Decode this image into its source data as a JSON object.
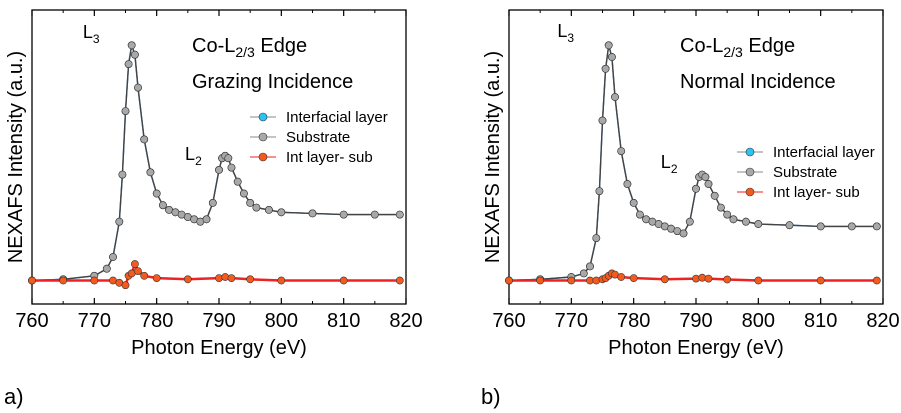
{
  "chart_data": [
    {
      "type": "scatter",
      "panel_label": "a)",
      "annotation_title": "Co-L",
      "annotation_title_sub": "2/3",
      "annotation_title_suffix": " Edge",
      "annotation_subtitle": "Grazing Incidence",
      "peak_labels": [
        {
          "base": "L",
          "sub": "3",
          "x": 773.4
        },
        {
          "base": "L",
          "sub": "2",
          "x": 789.8
        }
      ],
      "xlabel": "Photon Energy (eV)",
      "ylabel": "NEXAFS Intensity (a.u.)",
      "xlim": [
        760,
        820
      ],
      "ylim": [
        -0.1,
        1.15
      ],
      "xticks": [
        760,
        770,
        780,
        790,
        800,
        810,
        820
      ],
      "legend_position": "right",
      "series": [
        {
          "name": "Interfacial layer",
          "color": "#2bc4f2",
          "x": [
            760,
            765,
            770,
            772,
            773,
            774,
            774.5,
            775,
            775.5,
            776,
            776.5,
            777,
            778,
            779,
            780,
            781,
            782,
            783,
            784,
            785,
            786,
            787,
            788,
            789,
            790,
            790.5,
            791,
            791.5,
            792,
            793,
            794,
            795,
            796,
            798,
            800,
            805,
            810,
            815,
            819
          ],
          "y": [
            0.0,
            0.005,
            0.02,
            0.05,
            0.1,
            0.25,
            0.45,
            0.72,
            0.92,
            1.0,
            0.96,
            0.82,
            0.6,
            0.46,
            0.37,
            0.32,
            0.3,
            0.29,
            0.28,
            0.27,
            0.26,
            0.25,
            0.26,
            0.33,
            0.47,
            0.52,
            0.53,
            0.52,
            0.48,
            0.42,
            0.37,
            0.33,
            0.31,
            0.3,
            0.29,
            0.285,
            0.28,
            0.28,
            0.28
          ]
        },
        {
          "name": "Substrate",
          "color": "#a8a8a8",
          "x": [
            760,
            765,
            770,
            772,
            773,
            774,
            774.5,
            775,
            775.5,
            776,
            776.5,
            777,
            778,
            779,
            780,
            781,
            782,
            783,
            784,
            785,
            786,
            787,
            788,
            789,
            790,
            790.5,
            791,
            791.5,
            792,
            793,
            794,
            795,
            796,
            798,
            800,
            805,
            810,
            815,
            819
          ],
          "y": [
            0.0,
            0.005,
            0.02,
            0.05,
            0.1,
            0.25,
            0.45,
            0.72,
            0.92,
            1.0,
            0.96,
            0.82,
            0.6,
            0.46,
            0.37,
            0.32,
            0.3,
            0.29,
            0.28,
            0.27,
            0.26,
            0.25,
            0.26,
            0.33,
            0.47,
            0.52,
            0.53,
            0.52,
            0.48,
            0.42,
            0.37,
            0.33,
            0.31,
            0.3,
            0.29,
            0.285,
            0.28,
            0.28,
            0.28
          ]
        },
        {
          "name": "Int layer- sub",
          "color": "#f45a1e",
          "x": [
            760,
            765,
            770,
            773,
            774,
            775,
            775.5,
            776,
            776.5,
            777,
            778,
            780,
            785,
            790,
            791,
            792,
            795,
            800,
            810,
            819
          ],
          "y": [
            0.0,
            0.0,
            0.0,
            0.0,
            -0.01,
            -0.02,
            0.02,
            0.03,
            0.07,
            0.04,
            0.02,
            0.01,
            0.005,
            0.01,
            0.015,
            0.01,
            0.005,
            0.0,
            0.0,
            0.0
          ]
        }
      ]
    },
    {
      "type": "scatter",
      "panel_label": "b)",
      "annotation_title": "Co-L",
      "annotation_title_sub": "2/3",
      "annotation_title_suffix": " Edge",
      "annotation_subtitle": "Normal Incidence",
      "peak_labels": [
        {
          "base": "L",
          "sub": "3",
          "x": 773.0
        },
        {
          "base": "L",
          "sub": "2",
          "x": 789.6
        }
      ],
      "xlabel": "Photon Energy (eV)",
      "ylabel": "NEXAFS Intensity (a.u.)",
      "xlim": [
        760,
        820
      ],
      "ylim": [
        -0.1,
        1.15
      ],
      "xticks": [
        760,
        770,
        780,
        790,
        800,
        810,
        820
      ],
      "legend_position": "right",
      "series": [
        {
          "name": "Interfacial layer",
          "color": "#2bc4f2",
          "x": [
            760,
            765,
            770,
            772,
            773,
            774,
            774.5,
            775,
            775.5,
            776,
            776.5,
            777,
            778,
            779,
            780,
            781,
            782,
            783,
            784,
            785,
            786,
            787,
            788,
            789,
            790,
            790.5,
            791,
            791.5,
            792,
            793,
            794,
            795,
            796,
            798,
            800,
            805,
            810,
            815,
            819
          ],
          "y": [
            0.0,
            0.005,
            0.015,
            0.03,
            0.06,
            0.18,
            0.38,
            0.68,
            0.9,
            1.0,
            0.95,
            0.78,
            0.55,
            0.41,
            0.33,
            0.28,
            0.26,
            0.25,
            0.24,
            0.23,
            0.22,
            0.21,
            0.2,
            0.25,
            0.39,
            0.44,
            0.45,
            0.44,
            0.41,
            0.36,
            0.31,
            0.28,
            0.26,
            0.25,
            0.24,
            0.235,
            0.23,
            0.23,
            0.23
          ]
        },
        {
          "name": "Substrate",
          "color": "#a8a8a8",
          "x": [
            760,
            765,
            770,
            772,
            773,
            774,
            774.5,
            775,
            775.5,
            776,
            776.5,
            777,
            778,
            779,
            780,
            781,
            782,
            783,
            784,
            785,
            786,
            787,
            788,
            789,
            790,
            790.5,
            791,
            791.5,
            792,
            793,
            794,
            795,
            796,
            798,
            800,
            805,
            810,
            815,
            819
          ],
          "y": [
            0.0,
            0.005,
            0.015,
            0.03,
            0.06,
            0.18,
            0.38,
            0.68,
            0.9,
            1.0,
            0.95,
            0.78,
            0.55,
            0.41,
            0.33,
            0.28,
            0.26,
            0.25,
            0.24,
            0.23,
            0.22,
            0.21,
            0.2,
            0.25,
            0.39,
            0.44,
            0.45,
            0.44,
            0.41,
            0.36,
            0.31,
            0.28,
            0.26,
            0.25,
            0.24,
            0.235,
            0.23,
            0.23,
            0.23
          ]
        },
        {
          "name": "Int layer- sub",
          "color": "#f45a1e",
          "x": [
            760,
            765,
            770,
            773,
            774,
            775,
            775.5,
            776,
            776.5,
            777,
            778,
            780,
            785,
            790,
            791,
            792,
            795,
            800,
            810,
            819
          ],
          "y": [
            0.0,
            0.0,
            0.0,
            0.0,
            0.0,
            0.005,
            0.01,
            0.02,
            0.03,
            0.025,
            0.015,
            0.01,
            0.005,
            0.008,
            0.012,
            0.008,
            0.004,
            0.0,
            0.0,
            0.0
          ]
        }
      ]
    }
  ]
}
